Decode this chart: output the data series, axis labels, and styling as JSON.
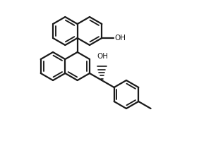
{
  "background_color": "#ffffff",
  "line_color": "#1a1a1a",
  "line_width": 1.6,
  "figsize": [
    2.82,
    2.37
  ],
  "dpi": 100,
  "OH1": "OH",
  "OH2": "OH"
}
